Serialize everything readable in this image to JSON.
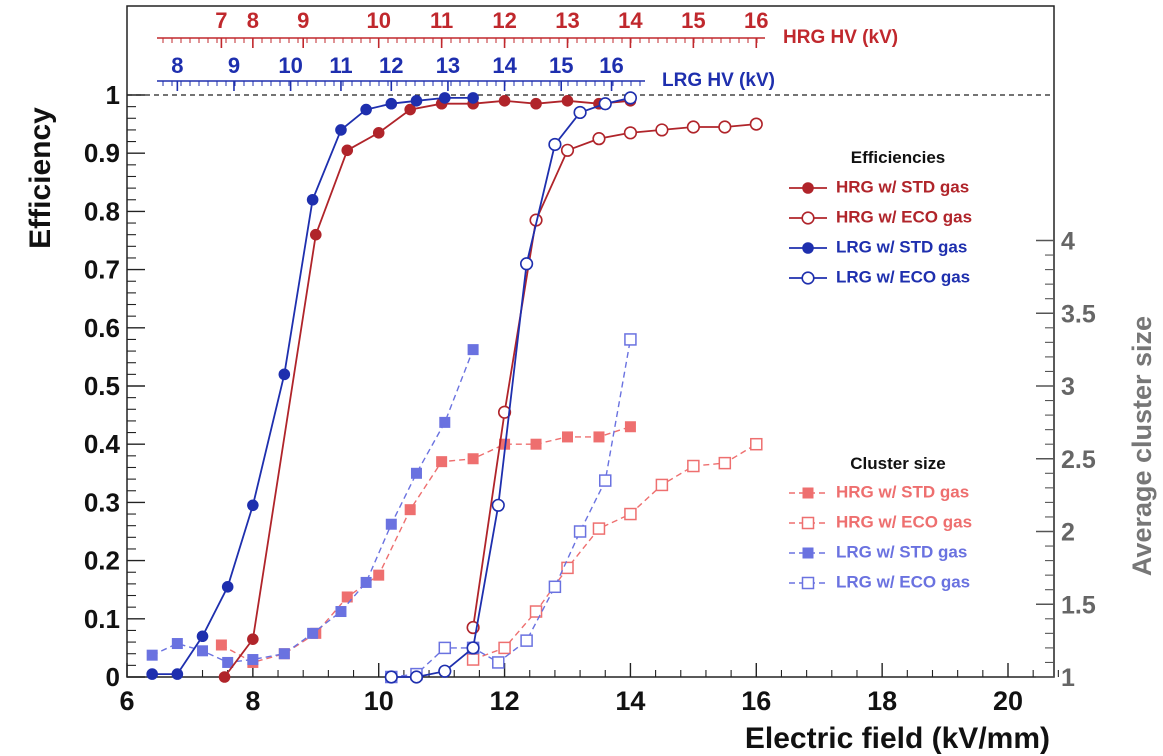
{
  "chart_data": {
    "type": "line",
    "xlabel": "Electric field (kV/mm)",
    "ylabel": "Efficiency",
    "y2label": "Average cluster size",
    "xlim": [
      6,
      20.8
    ],
    "ylim": [
      0,
      1
    ],
    "y2lim": [
      1,
      5
    ],
    "x_ticks": [
      6,
      8,
      10,
      12,
      14,
      16,
      18,
      20
    ],
    "y_ticks": [
      "0",
      "0.1",
      "0.2",
      "0.3",
      "0.4",
      "0.5",
      "0.6",
      "0.7",
      "0.8",
      "0.9",
      "1"
    ],
    "y2_ticks": [
      "1",
      "1.5",
      "2",
      "2.5",
      "3",
      "3.5",
      "4"
    ],
    "grid": false,
    "reference_line": 1,
    "top_axes": [
      {
        "label": "HRG HV (kV)",
        "color": "#c0282d",
        "ticks": [
          {
            "label": "7",
            "field": 7.5
          },
          {
            "label": "8",
            "field": 8.0
          },
          {
            "label": "9",
            "field": 8.8
          },
          {
            "label": "10",
            "field": 10.0
          },
          {
            "label": "11",
            "field": 11.0
          },
          {
            "label": "12",
            "field": 12.0
          },
          {
            "label": "13",
            "field": 13.0
          },
          {
            "label": "14",
            "field": 14.0
          },
          {
            "label": "15",
            "field": 15.0
          },
          {
            "label": "16",
            "field": 16.0
          }
        ]
      },
      {
        "label": "LRG HV (kV)",
        "color": "#1e2fae",
        "ticks": [
          {
            "label": "8",
            "field": 6.8
          },
          {
            "label": "9",
            "field": 7.7
          },
          {
            "label": "10",
            "field": 8.6
          },
          {
            "label": "11",
            "field": 9.4
          },
          {
            "label": "12",
            "field": 10.2
          },
          {
            "label": "13",
            "field": 11.1
          },
          {
            "label": "14",
            "field": 12.0
          },
          {
            "label": "15",
            "field": 12.9
          },
          {
            "label": "16",
            "field": 13.7
          }
        ]
      }
    ],
    "legend_efficiency": {
      "title": "Efficiencies",
      "placement": "right-upper"
    },
    "legend_cluster": {
      "title": "Cluster size",
      "placement": "right-lower"
    },
    "series": [
      {
        "name": "HRG w/ STD gas",
        "group": "efficiency",
        "axis": "left",
        "color": "#b0242a",
        "marker": "filled-circle",
        "line": "solid",
        "x": [
          7.55,
          8.0,
          9.0,
          9.5,
          10.0,
          10.5,
          11.0,
          11.5,
          12.0,
          12.5,
          13.0,
          13.5,
          14.0
        ],
        "y": [
          0.0,
          0.065,
          0.76,
          0.905,
          0.935,
          0.975,
          0.985,
          0.985,
          0.99,
          0.985,
          0.99,
          0.985,
          0.99
        ]
      },
      {
        "name": "HRG w/ ECO gas",
        "group": "efficiency",
        "axis": "left",
        "color": "#b0242a",
        "marker": "open-circle",
        "line": "solid",
        "x": [
          11.5,
          12.0,
          12.5,
          13.0,
          13.5,
          14.0,
          14.5,
          15.0,
          15.5,
          16.0
        ],
        "y": [
          0.085,
          0.455,
          0.785,
          0.905,
          0.925,
          0.935,
          0.94,
          0.945,
          0.945,
          0.95
        ]
      },
      {
        "name": "LRG w/ STD gas",
        "group": "efficiency",
        "axis": "left",
        "color": "#1e2fae",
        "marker": "filled-circle",
        "line": "solid",
        "x": [
          6.4,
          6.8,
          7.2,
          7.6,
          8.0,
          8.5,
          8.95,
          9.4,
          9.8,
          10.2,
          10.6,
          11.05,
          11.5
        ],
        "y": [
          0.005,
          0.005,
          0.07,
          0.155,
          0.295,
          0.52,
          0.82,
          0.94,
          0.975,
          0.985,
          0.99,
          0.995,
          0.995
        ]
      },
      {
        "name": "LRG w/ ECO gas",
        "group": "efficiency",
        "axis": "left",
        "color": "#1e2fae",
        "marker": "open-circle",
        "line": "solid",
        "x": [
          10.2,
          10.6,
          11.05,
          11.5,
          11.9,
          12.35,
          12.8,
          13.2,
          13.6,
          14.0
        ],
        "y": [
          0.0,
          0.0,
          0.01,
          0.05,
          0.295,
          0.71,
          0.915,
          0.97,
          0.985,
          0.995
        ]
      },
      {
        "name": "HRG w/ STD gas",
        "group": "cluster",
        "axis": "right",
        "color": "#ee6f6f",
        "marker": "filled-square",
        "line": "dashed",
        "x": [
          7.5,
          8.0,
          8.5,
          9.0,
          9.5,
          10.0,
          10.5,
          11.0,
          11.5,
          12.0,
          12.5,
          13.0,
          13.5,
          14.0
        ],
        "y": [
          1.22,
          1.1,
          1.16,
          1.3,
          1.55,
          1.7,
          2.15,
          2.48,
          2.5,
          2.6,
          2.6,
          2.65,
          2.65,
          2.72
        ]
      },
      {
        "name": "HRG w/ ECO gas",
        "group": "cluster",
        "axis": "right",
        "color": "#ee6f6f",
        "marker": "open-square",
        "line": "dashed",
        "x": [
          11.5,
          12.0,
          12.5,
          13.0,
          13.5,
          14.0,
          14.5,
          15.0,
          15.5,
          16.0
        ],
        "y": [
          1.12,
          1.2,
          1.45,
          1.75,
          2.02,
          2.12,
          2.32,
          2.45,
          2.47,
          2.6
        ]
      },
      {
        "name": "LRG w/ STD gas",
        "group": "cluster",
        "axis": "right",
        "color": "#6a72e0",
        "marker": "filled-square",
        "line": "dashed",
        "x": [
          6.4,
          6.8,
          7.2,
          7.6,
          8.0,
          8.5,
          8.95,
          9.4,
          9.8,
          10.2,
          10.6,
          11.05,
          11.5
        ],
        "y": [
          1.15,
          1.23,
          1.18,
          1.1,
          1.12,
          1.16,
          1.3,
          1.45,
          1.65,
          2.05,
          2.4,
          2.75,
          3.25
        ]
      },
      {
        "name": "LRG w/ ECO gas",
        "group": "cluster",
        "axis": "right",
        "color": "#6a72e0",
        "marker": "open-square",
        "line": "dashed",
        "x": [
          10.2,
          10.6,
          11.05,
          11.5,
          11.9,
          12.35,
          12.8,
          13.2,
          13.6,
          14.0
        ],
        "y": [
          1.0,
          1.02,
          1.2,
          1.2,
          1.1,
          1.25,
          1.62,
          2.0,
          2.35,
          3.32
        ]
      }
    ]
  }
}
